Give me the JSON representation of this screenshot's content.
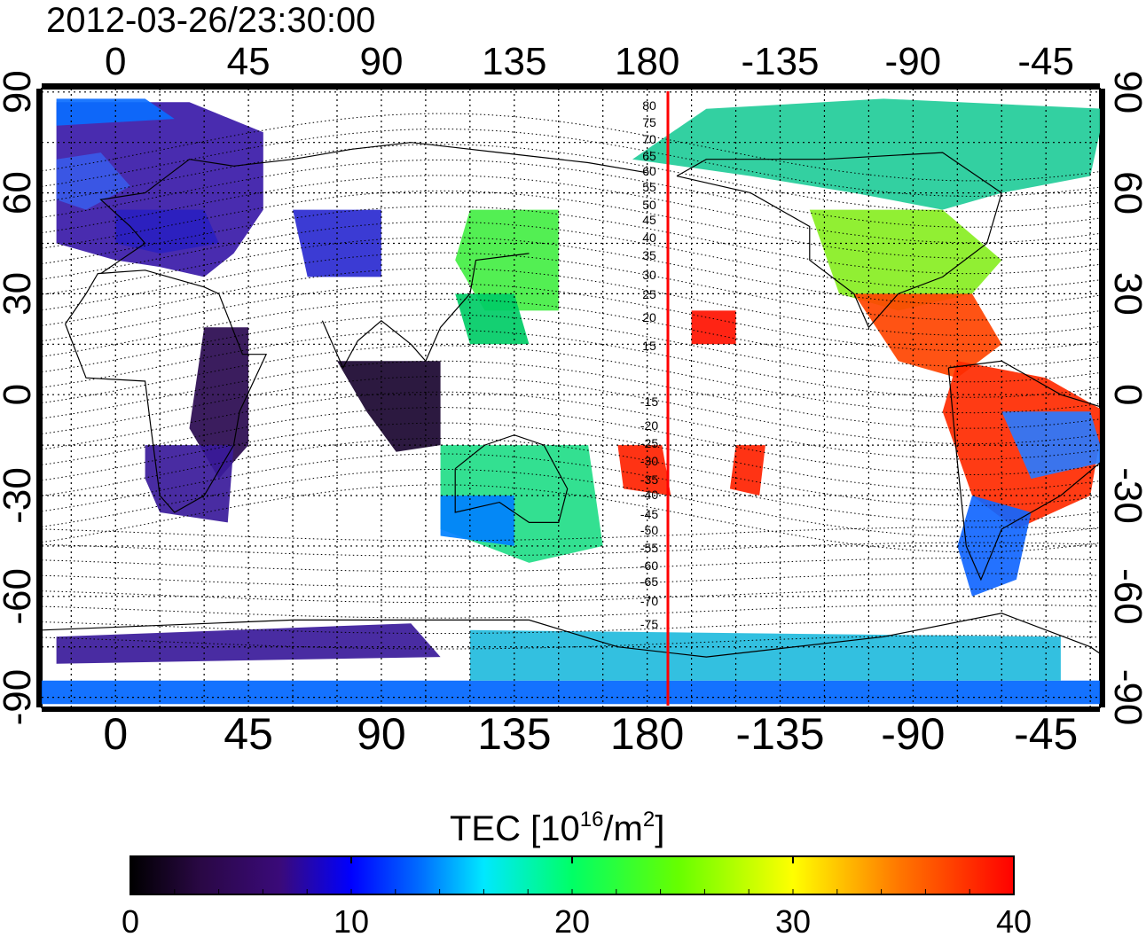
{
  "title": "2012-03-26/23:30:00",
  "map": {
    "top_lon_labels": [
      "0",
      "45",
      "90",
      "135",
      "180",
      "-135",
      "-90",
      "-45"
    ],
    "bottom_lon_labels": [
      "0",
      "45",
      "90",
      "135",
      "180",
      "-135",
      "-90",
      "-45"
    ],
    "left_lat_labels": [
      "90",
      "60",
      "30",
      "0",
      "-30",
      "-60",
      "-90"
    ],
    "right_lat_labels": [
      "90",
      "60",
      "30",
      "0",
      "-30",
      "-60",
      "-90"
    ],
    "meridian_line_color": "#ff0000",
    "contour_labels": [
      "80",
      "75",
      "70",
      "65",
      "60",
      "55",
      "50",
      "45",
      "40",
      "35",
      "30",
      "25",
      "20",
      "15",
      "-15",
      "-20",
      "-25",
      "-30",
      "-35",
      "-40",
      "-45",
      "-50",
      "-55",
      "-60",
      "-65",
      "-70",
      "-75"
    ]
  },
  "colorbar": {
    "label_main": "TEC  [10",
    "label_sup1": "16",
    "label_mid": "/m",
    "label_sup2": "2",
    "label_end": "]",
    "ticks": [
      "0",
      "10",
      "20",
      "30",
      "40"
    ]
  },
  "colors": {
    "scale": [
      "#000000",
      "#3a0a5a",
      "#0000ff",
      "#0088ff",
      "#00ffff",
      "#00ff66",
      "#55ff00",
      "#ffff00",
      "#ff8800",
      "#ff0000"
    ]
  }
}
